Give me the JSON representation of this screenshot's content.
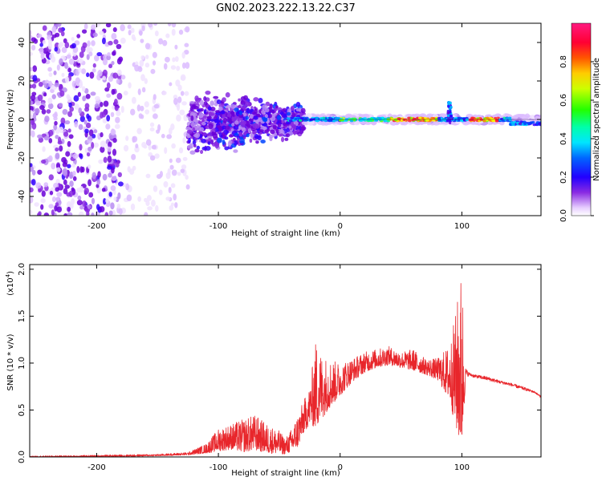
{
  "figure_title": "GN02.2023.222.13.22.C37",
  "chart_data": [
    {
      "type": "heatmap",
      "title": "GN02.2023.222.13.22.C37",
      "xlabel": "Height of straight line (km)",
      "ylabel": "Frequency (Hz)",
      "xlim": [
        -255,
        165
      ],
      "ylim": [
        -50,
        50
      ],
      "x_ticks": [
        -200,
        -100,
        0,
        100
      ],
      "x_tick_labels": [
        "-200",
        "-100",
        "0",
        "100"
      ],
      "y_ticks": [
        -40,
        -20,
        0,
        20,
        40
      ],
      "y_tick_labels": [
        "-40",
        "-20",
        "0",
        "20",
        "40"
      ],
      "colorbar": {
        "label": "Normalized spectral amplitude",
        "ticks": [
          0.0,
          0.2,
          0.4,
          0.6,
          0.8
        ],
        "tick_labels": [
          "0.0",
          "0.2",
          "0.4",
          "0.6",
          "0.8"
        ],
        "range": [
          0,
          1
        ],
        "colors": [
          "#ffffff",
          "#6a00d8",
          "#0000ff",
          "#00e5ff",
          "#00ff00",
          "#ffff00",
          "#ff6600",
          "#ff0033",
          "#ff1a80"
        ]
      },
      "regions": [
        {
          "x": [
            -255,
            -180
          ],
          "freq": [
            -50,
            50
          ],
          "amplitude": 0.12,
          "pattern": "scattered"
        },
        {
          "x": [
            -180,
            -120
          ],
          "freq": [
            -50,
            45
          ],
          "amplitude": 0.08,
          "pattern": "sparse"
        },
        {
          "x": [
            -120,
            -30
          ],
          "freq": [
            -20,
            12
          ],
          "amplitude": 0.25,
          "pattern": "dense"
        },
        {
          "x": [
            -30,
            165
          ],
          "freq": [
            -2,
            2
          ],
          "amplitude": 0.6,
          "pattern": "line"
        }
      ],
      "grid": false
    },
    {
      "type": "line",
      "xlabel": "Height of straight line (km)",
      "ylabel": "SNR (10 * v/v)",
      "scale_label": "(x10",
      "scale_exponent": "4",
      "xlim": [
        -255,
        165
      ],
      "ylim": [
        0,
        2.05
      ],
      "x_ticks": [
        -200,
        -100,
        0,
        100
      ],
      "x_tick_labels": [
        "-200",
        "-100",
        "0",
        "100"
      ],
      "y_ticks": [
        0.0,
        0.5,
        1.0,
        1.5,
        2.0
      ],
      "y_tick_labels": [
        "0.0",
        "0.5",
        "1.0",
        "1.5",
        "2.0"
      ],
      "color": "#e8262b",
      "grid": false,
      "envelope": {
        "x": [
          -255,
          -200,
          -150,
          -125,
          -110,
          -100,
          -90,
          -80,
          -70,
          -60,
          -50,
          -45,
          -40,
          -35,
          -30,
          -25,
          -20,
          -15,
          -10,
          0,
          10,
          20,
          30,
          40,
          50,
          60,
          70,
          80,
          90,
          95,
          100,
          103,
          106,
          110,
          120,
          130,
          140,
          150,
          160,
          165
        ],
        "low": [
          0.0,
          0.0,
          0.01,
          0.02,
          0.04,
          0.06,
          0.08,
          0.05,
          0.07,
          0.04,
          0.03,
          0.03,
          0.05,
          0.1,
          0.25,
          0.35,
          0.3,
          0.4,
          0.5,
          0.65,
          0.8,
          0.9,
          0.95,
          0.98,
          0.95,
          0.92,
          0.88,
          0.82,
          0.6,
          0.3,
          0.05,
          0.8,
          0.85,
          0.83,
          0.8,
          0.77,
          0.74,
          0.7,
          0.67,
          0.62
        ],
        "high": [
          0.01,
          0.02,
          0.03,
          0.05,
          0.14,
          0.3,
          0.35,
          0.4,
          0.45,
          0.35,
          0.28,
          0.2,
          0.3,
          0.45,
          0.6,
          0.75,
          1.25,
          1.1,
          1.05,
          1.0,
          1.05,
          1.12,
          1.15,
          1.18,
          1.12,
          1.15,
          1.05,
          1.05,
          1.2,
          1.55,
          2.05,
          0.95,
          0.9,
          0.88,
          0.86,
          0.82,
          0.79,
          0.75,
          0.7,
          0.65
        ]
      }
    }
  ]
}
